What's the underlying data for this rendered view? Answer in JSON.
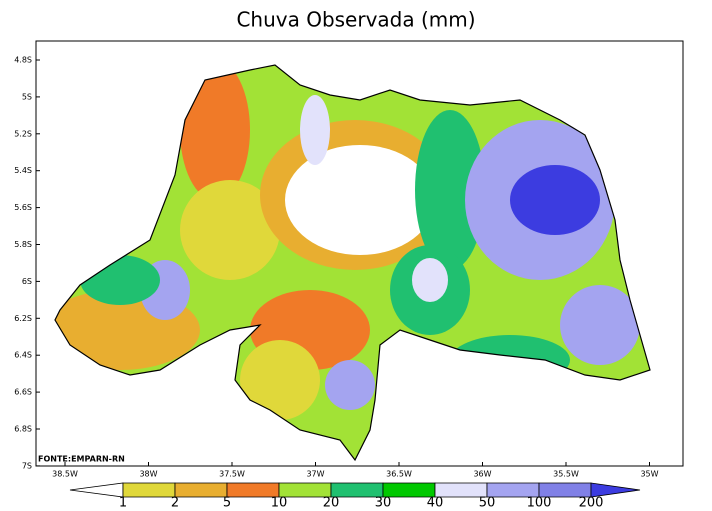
{
  "title": "Chuva Observada (mm)",
  "source": "FONTE:EMPARN-RN",
  "latitude_labels": [
    "4.8S",
    "5S",
    "5.2S",
    "5.4S",
    "5.6S",
    "5.8S",
    "6S",
    "6.2S",
    "6.4S",
    "6.6S",
    "6.8S",
    "7S"
  ],
  "longitude_labels": [
    "38.5W",
    "38W",
    "37.5W",
    "37W",
    "36.5W",
    "36W",
    "35.5W",
    "35W"
  ],
  "legend": {
    "labels": [
      "1",
      "2",
      "5",
      "10",
      "20",
      "30",
      "40",
      "50",
      "100",
      "200"
    ],
    "colors": [
      "#ffffff",
      "#e0d83a",
      "#e8ae30",
      "#f07a28",
      "#a2e236",
      "#20c070",
      "#00c800",
      "#e2e2fb",
      "#a4a4f0",
      "#8080e6",
      "#3c3ce0"
    ]
  }
}
